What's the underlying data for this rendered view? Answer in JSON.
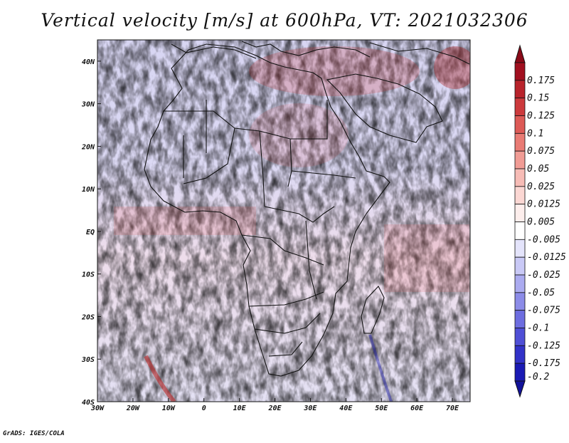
{
  "title": "Vertical velocity [m/s] at 600hPa, VT: 2021032306",
  "credit": "GrADS: IGES/COLA",
  "map": {
    "lon_range": [
      -30,
      75
    ],
    "lat_range": [
      -40,
      45
    ],
    "x_ticks": [
      {
        "lon": -30,
        "label": "30W"
      },
      {
        "lon": -20,
        "label": "20W"
      },
      {
        "lon": -10,
        "label": "10W"
      },
      {
        "lon": 0,
        "label": "0"
      },
      {
        "lon": 10,
        "label": "10E"
      },
      {
        "lon": 20,
        "label": "20E"
      },
      {
        "lon": 30,
        "label": "30E"
      },
      {
        "lon": 40,
        "label": "40E"
      },
      {
        "lon": 50,
        "label": "50E"
      },
      {
        "lon": 60,
        "label": "60E"
      },
      {
        "lon": 70,
        "label": "70E"
      }
    ],
    "y_ticks": [
      {
        "lat": 40,
        "label": "40N"
      },
      {
        "lat": 30,
        "label": "30N"
      },
      {
        "lat": 20,
        "label": "20N"
      },
      {
        "lat": 10,
        "label": "10N"
      },
      {
        "lat": 0,
        "label": "EQ"
      },
      {
        "lat": -10,
        "label": "10S"
      },
      {
        "lat": -20,
        "label": "20S"
      },
      {
        "lat": -30,
        "label": "30S"
      },
      {
        "lat": -40,
        "label": "40S"
      }
    ],
    "coastline_color": "#111111"
  },
  "colorbar": {
    "levels": [
      {
        "label": "0.175",
        "color": "#a10f1f"
      },
      {
        "label": "0.15",
        "color": "#b8232b"
      },
      {
        "label": "0.125",
        "color": "#cc3a3c"
      },
      {
        "label": "0.1",
        "color": "#dd5a56"
      },
      {
        "label": "0.075",
        "color": "#e97b74"
      },
      {
        "label": "0.05",
        "color": "#f19c95"
      },
      {
        "label": "0.025",
        "color": "#f7bcb6"
      },
      {
        "label": "0.0125",
        "color": "#fbd7d3"
      },
      {
        "label": "0.005",
        "color": "#fdeeec"
      },
      {
        "label": "-0.005",
        "color": "#ffffff"
      },
      {
        "label": "-0.0125",
        "color": "#e4e4fb"
      },
      {
        "label": "-0.025",
        "color": "#c9c9f6"
      },
      {
        "label": "-0.05",
        "color": "#ababf0"
      },
      {
        "label": "-0.075",
        "color": "#8c8ce8"
      },
      {
        "label": "-0.1",
        "color": "#6d6de0"
      },
      {
        "label": "-0.125",
        "color": "#4f4fd6"
      },
      {
        "label": "-0.175",
        "color": "#3232c8"
      },
      {
        "label": "-0.2",
        "color": "#1a1ab4"
      }
    ],
    "top_arrow_color": "#8a0a18",
    "bottom_arrow_color": "#12129a"
  }
}
